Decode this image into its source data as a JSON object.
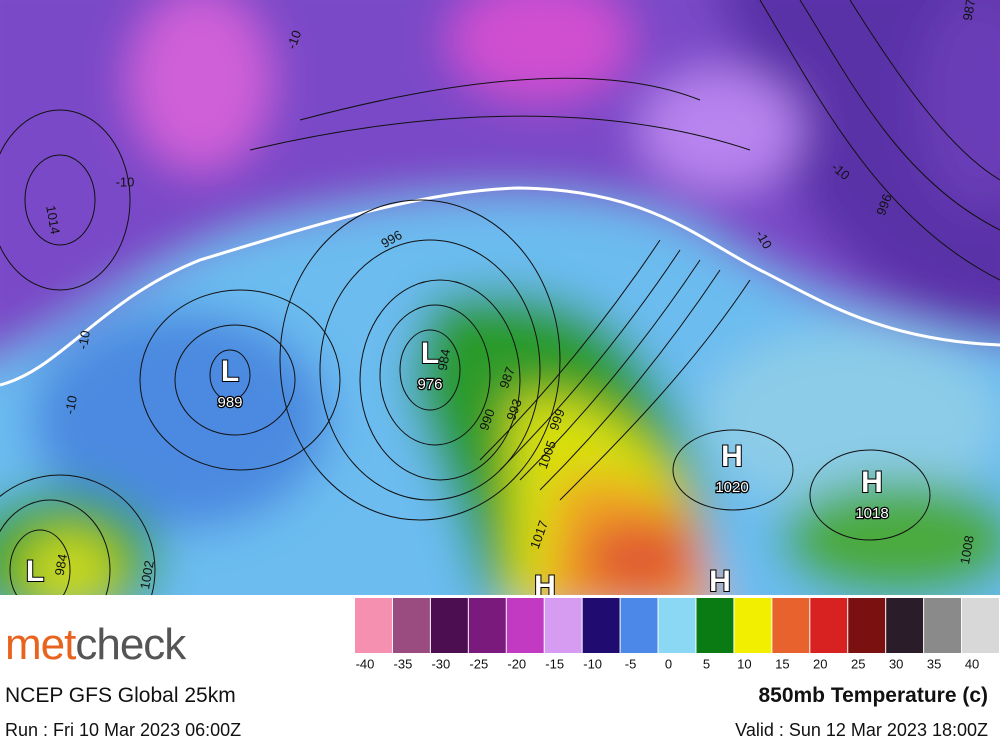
{
  "map": {
    "systems": [
      {
        "letter": "L",
        "pressure": "989"
      },
      {
        "letter": "L",
        "pressure": "976"
      },
      {
        "letter": "H",
        "pressure": "1020"
      },
      {
        "letter": "H",
        "pressure": "1018"
      },
      {
        "letter": "L"
      },
      {
        "letter": "H"
      },
      {
        "letter": "H"
      }
    ],
    "contour_labels": [
      "-10",
      "-10",
      "-10",
      "-10",
      "-10",
      "-10",
      "1014",
      "996",
      "996",
      "984",
      "987",
      "990",
      "993",
      "999",
      "1005",
      "1017",
      "1002",
      "1008",
      "987",
      "984"
    ]
  },
  "legend": {
    "colors": [
      "#f590b0",
      "#9a4c80",
      "#4c0e50",
      "#7a1a7c",
      "#c23ac2",
      "#d69cf2",
      "#200c70",
      "#4c88e8",
      "#8ad8f4",
      "#0a7a12",
      "#f2f000",
      "#e8622e",
      "#d82222",
      "#7a1010",
      "#2a1c28",
      "#8a8a8a",
      "#d8d8d8"
    ],
    "labels": [
      "-40",
      "-35",
      "-30",
      "-25",
      "-20",
      "-15",
      "-10",
      "-5",
      "0",
      "5",
      "10",
      "15",
      "20",
      "25",
      "30",
      "35",
      "40"
    ]
  },
  "footer": {
    "logo_part1": "met",
    "logo_part2": "check",
    "model": "NCEP GFS Global 25km",
    "product": "850mb Temperature (c)",
    "run": "Run : Fri 10 Mar 2023 06:00Z",
    "valid": "Valid : Sun 12 Mar 2023 18:00Z"
  }
}
